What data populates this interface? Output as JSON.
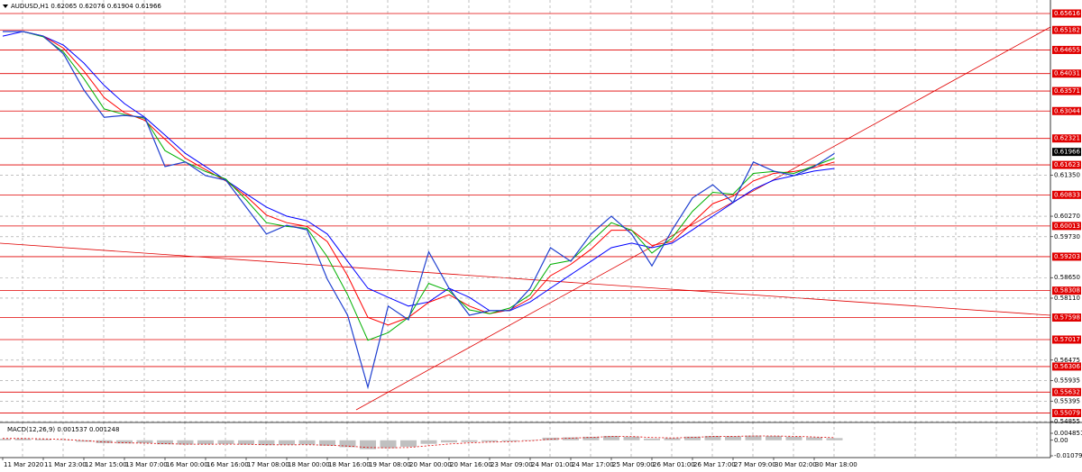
{
  "chart_data": [
    {
      "type": "line",
      "title": "AUDUSD,H1  0.62065 0.62076 0.61904 0.61966",
      "x_labels": [
        "11 Mar 2020",
        "11 Mar 23:00",
        "12 Mar 15:00",
        "13 Mar 07:00",
        "16 Mar 00:00",
        "16 Mar 16:00",
        "17 Mar 08:00",
        "18 Mar 00:00",
        "18 Mar 16:00",
        "19 Mar 08:00",
        "20 Mar 00:00",
        "20 Mar 16:00",
        "23 Mar 09:00",
        "24 Mar 01:00",
        "24 Mar 17:00",
        "25 Mar 09:00",
        "26 Mar 01:00",
        "26 Mar 17:00",
        "27 Mar 09:00",
        "30 Mar 02:00",
        "30 Mar 18:00"
      ],
      "ylim": [
        0.54855,
        0.65972
      ],
      "yticks": [
        {
          "value": 0.6135,
          "label": "0.61350"
        },
        {
          "value": 0.6027,
          "label": "0.60270"
        },
        {
          "value": 0.5973,
          "label": "0.59730"
        },
        {
          "value": 0.5865,
          "label": "0.58650"
        },
        {
          "value": 0.5811,
          "label": "0.58110"
        },
        0.56475,
        0.55935,
        0.55395,
        0.54855
      ],
      "grid": true,
      "levels": [
        0.65616,
        0.65182,
        0.64655,
        0.64031,
        0.63571,
        0.63044,
        0.62321,
        0.61623,
        0.60833,
        0.60013,
        0.59203,
        0.58308,
        0.57598,
        0.57017,
        0.56306,
        0.55632,
        0.55079
      ],
      "levels_color": "#e00000",
      "last_price": 0.61966,
      "series": [
        {
          "color": "#0000ff",
          "values": [
            0.6502,
            0.6514,
            0.6502,
            0.6478,
            0.6431,
            0.6372,
            0.6324,
            0.6288,
            0.6241,
            0.6193,
            0.6158,
            0.6122,
            0.6086,
            0.6051,
            0.6027,
            0.6015,
            0.598,
            0.5908,
            0.5837,
            0.5813,
            0.579,
            0.5801,
            0.5837,
            0.5813,
            0.5778,
            0.5778,
            0.5801,
            0.5837,
            0.5873,
            0.5908,
            0.5944,
            0.5956,
            0.5944,
            0.5956,
            0.5991,
            0.6027,
            0.6063,
            0.6098,
            0.6122,
            0.6134,
            0.6146,
            0.6153
          ]
        },
        {
          "color": "#ff0000",
          "values": [
            0.6514,
            0.6514,
            0.6502,
            0.647,
            0.641,
            0.634,
            0.63,
            0.628,
            0.623,
            0.618,
            0.615,
            0.612,
            0.608,
            0.603,
            0.601,
            0.6,
            0.596,
            0.587,
            0.576,
            0.574,
            0.576,
            0.58,
            0.582,
            0.579,
            0.577,
            0.578,
            0.581,
            0.587,
            0.59,
            0.594,
            0.599,
            0.599,
            0.595,
            0.596,
            0.601,
            0.606,
            0.608,
            0.612,
            0.614,
            0.6145,
            0.6155,
            0.617
          ]
        },
        {
          "color": "#00b000",
          "values": [
            0.6514,
            0.6514,
            0.65,
            0.646,
            0.639,
            0.631,
            0.6295,
            0.6285,
            0.62,
            0.617,
            0.6145,
            0.6125,
            0.607,
            0.601,
            0.6,
            0.5995,
            0.592,
            0.582,
            0.57,
            0.572,
            0.576,
            0.585,
            0.583,
            0.578,
            0.577,
            0.5785,
            0.582,
            0.59,
            0.591,
            0.596,
            0.601,
            0.599,
            0.593,
            0.597,
            0.604,
            0.609,
            0.6085,
            0.614,
            0.6145,
            0.614,
            0.616,
            0.618
          ]
        },
        {
          "color": "#2040d0",
          "values": [
            0.6514,
            0.6514,
            0.6502,
            0.6455,
            0.636,
            0.6288,
            0.6293,
            0.6288,
            0.6158,
            0.617,
            0.6134,
            0.6122,
            0.6051,
            0.598,
            0.6003,
            0.5991,
            0.5861,
            0.5766,
            0.5576,
            0.579,
            0.5754,
            0.5933,
            0.5837,
            0.5766,
            0.5778,
            0.5778,
            0.5837,
            0.5944,
            0.5908,
            0.598,
            0.6027,
            0.598,
            0.5896,
            0.5991,
            0.6075,
            0.611,
            0.6063,
            0.617,
            0.6146,
            0.6134,
            0.6158,
            0.6193
          ]
        }
      ]
    },
    {
      "type": "bar",
      "title": "MACD(12,26,9) 0.001537 0.001248",
      "ylim": [
        -0.01204,
        0.01174
      ],
      "yticks": [
        0.004851,
        {
          "value": 0,
          "label": "0.00"
        },
        -0.01079
      ],
      "color": "#c0c0c0",
      "values": [
        0.001,
        0.0012,
        0.0008,
        0.0002,
        -0.001,
        -0.002,
        -0.0022,
        -0.002,
        -0.0028,
        -0.003,
        -0.0028,
        -0.0026,
        -0.003,
        -0.0034,
        -0.0032,
        -0.003,
        -0.0038,
        -0.0048,
        -0.0062,
        -0.0055,
        -0.0045,
        -0.0025,
        -0.0015,
        -0.0012,
        -0.001,
        -0.0008,
        0.0002,
        0.0018,
        0.002,
        0.0024,
        0.003,
        0.0025,
        0.0012,
        0.0015,
        0.0025,
        0.003,
        0.0028,
        0.0032,
        0.003,
        0.0025,
        0.002,
        0.0015
      ],
      "series": [
        {
          "color": "#e00000",
          "values": [
            0.0012,
            0.0012,
            0.001,
            0.0006,
            -0.0002,
            -0.0012,
            -0.0018,
            -0.002,
            -0.0024,
            -0.0027,
            -0.0028,
            -0.0027,
            -0.0028,
            -0.0031,
            -0.0032,
            -0.0031,
            -0.0034,
            -0.004,
            -0.005,
            -0.0053,
            -0.005,
            -0.0038,
            -0.0026,
            -0.0018,
            -0.0013,
            -0.001,
            -0.0004,
            0.0008,
            0.0015,
            0.002,
            0.0026,
            0.0026,
            0.0019,
            0.0016,
            0.002,
            0.0026,
            0.0027,
            0.003,
            0.003,
            0.0027,
            0.0023,
            0.0018
          ]
        }
      ]
    }
  ]
}
